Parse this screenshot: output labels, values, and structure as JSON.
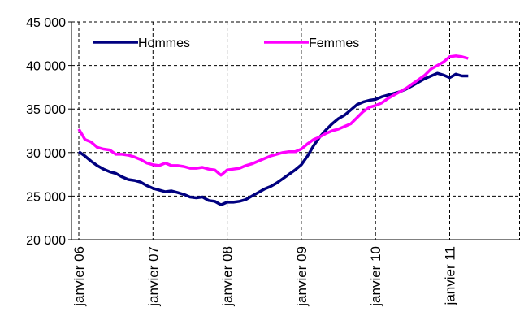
{
  "chart_data": {
    "type": "line",
    "categories": [
      "janvier 06",
      null,
      null,
      null,
      null,
      null,
      null,
      null,
      null,
      null,
      null,
      null,
      "janvier 07",
      null,
      null,
      null,
      null,
      null,
      null,
      null,
      null,
      null,
      null,
      null,
      "janvier 08",
      null,
      null,
      null,
      null,
      null,
      null,
      null,
      null,
      null,
      null,
      null,
      "janvier 09",
      null,
      null,
      null,
      null,
      null,
      null,
      null,
      null,
      null,
      null,
      null,
      "janvier 10",
      null,
      null,
      null,
      null,
      null,
      null,
      null,
      null,
      null,
      null,
      null,
      "janvier 11",
      null,
      null,
      null,
      null,
      null,
      null,
      null,
      null,
      null,
      null,
      null
    ],
    "series": [
      {
        "name": "Hommes",
        "color": "#000080",
        "values": [
          30100,
          29600,
          29000,
          28500,
          28100,
          27800,
          27600,
          27200,
          26900,
          26800,
          26600,
          26200,
          25900,
          25700,
          25500,
          25600,
          25400,
          25200,
          24900,
          24800,
          24900,
          24500,
          24400,
          24000,
          24300,
          24300,
          24400,
          24600,
          25000,
          25400,
          25800,
          26100,
          26500,
          27000,
          27500,
          28000,
          28600,
          29600,
          30800,
          31800,
          32600,
          33300,
          33900,
          34300,
          34900,
          35500,
          35800,
          36000,
          36100,
          36400,
          36600,
          36800,
          37000,
          37300,
          37700,
          38100,
          38500,
          38800,
          39100,
          38900,
          38600,
          39000,
          38800,
          38800,
          null,
          null,
          null,
          null,
          null,
          null,
          null,
          null
        ]
      },
      {
        "name": "Femmes",
        "color": "#ff00ff",
        "values": [
          32700,
          31500,
          31200,
          30600,
          30400,
          30300,
          29800,
          29800,
          29700,
          29500,
          29200,
          28800,
          28600,
          28500,
          28800,
          28500,
          28500,
          28400,
          28200,
          28200,
          28300,
          28100,
          28000,
          27400,
          28000,
          28100,
          28200,
          28500,
          28700,
          29000,
          29300,
          29600,
          29800,
          30000,
          30100,
          30100,
          30400,
          31000,
          31500,
          31800,
          32200,
          32500,
          32700,
          33000,
          33300,
          34000,
          34700,
          35200,
          35400,
          35700,
          36200,
          36600,
          37000,
          37400,
          37900,
          38400,
          38900,
          39600,
          40000,
          40400,
          41000,
          41100,
          41000,
          40800,
          null,
          null,
          null,
          null,
          null,
          null,
          null,
          null
        ]
      }
    ],
    "ylim": [
      20000,
      45000
    ],
    "yticks": [
      {
        "value": 20000,
        "label": "20 000"
      },
      {
        "value": 25000,
        "label": "25 000"
      },
      {
        "value": 30000,
        "label": "30 000"
      },
      {
        "value": 35000,
        "label": "35 000"
      },
      {
        "value": 40000,
        "label": "40 000"
      },
      {
        "value": 45000,
        "label": "45 000"
      }
    ],
    "grid": true,
    "legend": "top-left"
  }
}
